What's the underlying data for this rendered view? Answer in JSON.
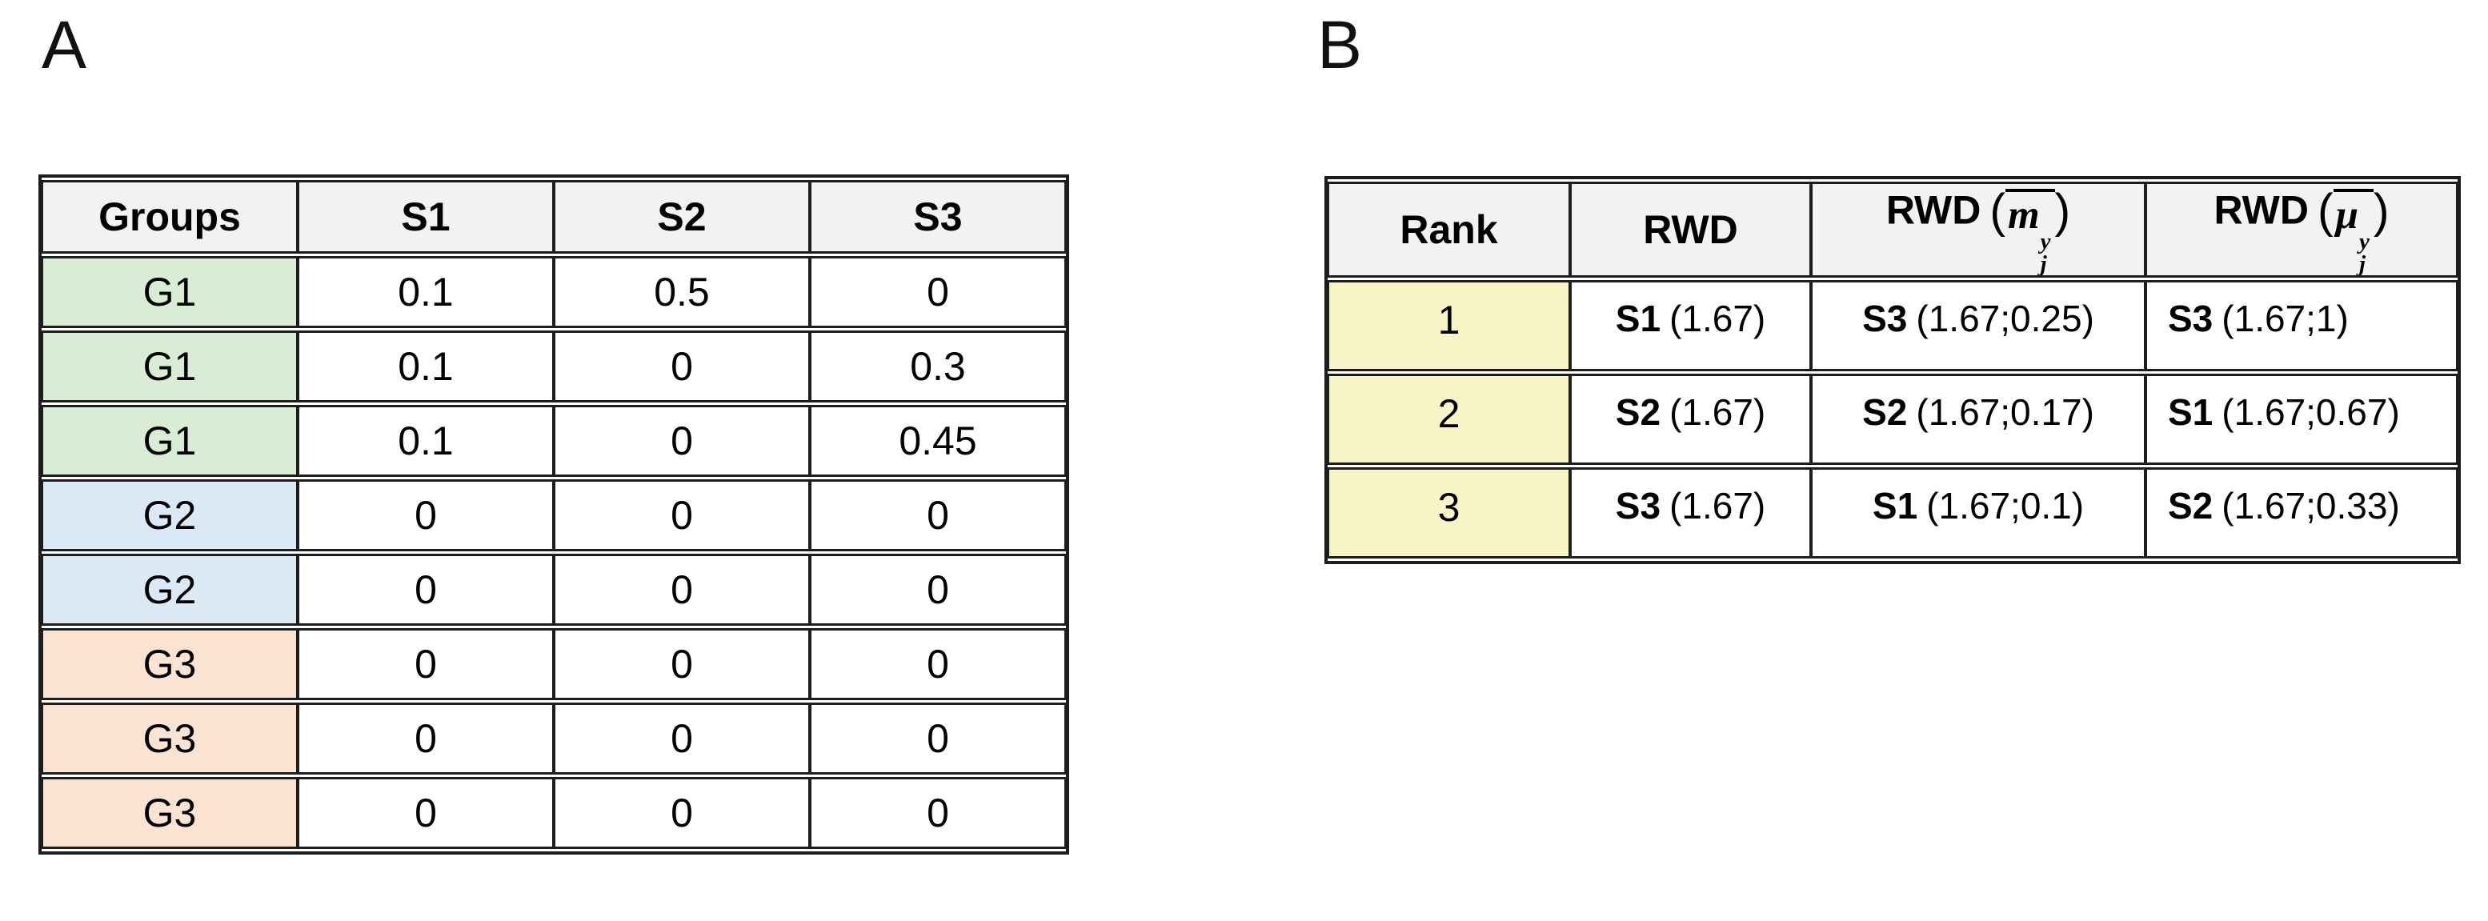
{
  "colors": {
    "header_bg": "#f2f2f2",
    "green": "#d9ecd4",
    "blue": "#dbe8f6",
    "orange": "#fbe3d2",
    "yellow": "#f7f5c6",
    "border": "#1d1d1d"
  },
  "panel_a": {
    "label": "A",
    "table": {
      "headers": [
        "Groups",
        "S1",
        "S2",
        "S3"
      ],
      "rows": [
        {
          "group": "G1",
          "color": "green",
          "values": [
            "0.1",
            "0.5",
            "0"
          ]
        },
        {
          "group": "G1",
          "color": "green",
          "values": [
            "0.1",
            "0",
            "0.3"
          ]
        },
        {
          "group": "G1",
          "color": "green",
          "values": [
            "0.1",
            "0",
            "0.45"
          ]
        },
        {
          "group": "G2",
          "color": "blue",
          "values": [
            "0",
            "0",
            "0"
          ]
        },
        {
          "group": "G2",
          "color": "blue",
          "values": [
            "0",
            "0",
            "0"
          ]
        },
        {
          "group": "G3",
          "color": "orange",
          "values": [
            "0",
            "0",
            "0"
          ]
        },
        {
          "group": "G3",
          "color": "orange",
          "values": [
            "0",
            "0",
            "0"
          ]
        },
        {
          "group": "G3",
          "color": "orange",
          "values": [
            "0",
            "0",
            "0"
          ]
        }
      ]
    }
  },
  "panel_b": {
    "label": "B",
    "table": {
      "headers": {
        "rank": "Rank",
        "rwd": "RWD",
        "rwd_m": {
          "prefix": "RWD",
          "open": "(",
          "symbol": "m",
          "sup": "y",
          "sub": "j",
          "close": ")"
        },
        "rwd_mu": {
          "prefix": "RWD",
          "open": "(",
          "symbol": "μ",
          "sup": "y",
          "sub": "j",
          "close": ")"
        }
      },
      "rows": [
        {
          "rank": "1",
          "cells": [
            {
              "name": "S1",
              "value": "(1.67)"
            },
            {
              "name": "S3",
              "value": "(1.67;0.25)"
            },
            {
              "name": "S3",
              "value": "(1.67;1)"
            }
          ]
        },
        {
          "rank": "2",
          "cells": [
            {
              "name": "S2",
              "value": "(1.67)"
            },
            {
              "name": "S2",
              "value": "(1.67;0.17)"
            },
            {
              "name": "S1",
              "value": "(1.67;0.67)"
            }
          ]
        },
        {
          "rank": "3",
          "cells": [
            {
              "name": "S3",
              "value": "(1.67)"
            },
            {
              "name": "S1",
              "value": "(1.67;0.1)"
            },
            {
              "name": "S2",
              "value": "(1.67;0.33)"
            }
          ]
        }
      ]
    }
  }
}
